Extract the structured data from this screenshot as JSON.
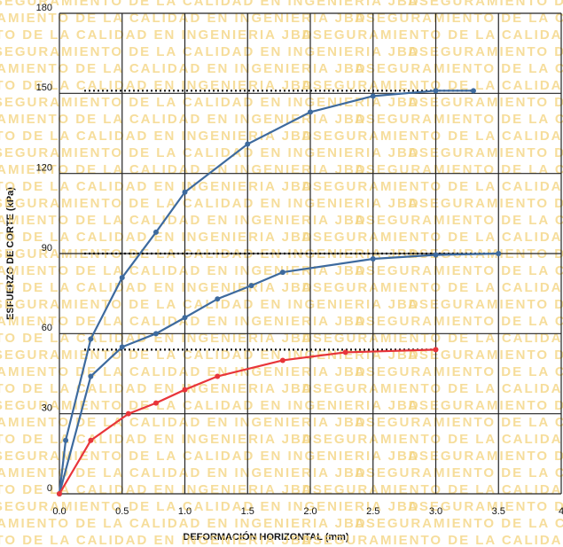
{
  "chart_data": {
    "type": "line",
    "watermark": "ASEGURAMIENTO DE LA CALIDAD EN INGENIERIA  JBD",
    "xlabel": "DEFORMACIÓN HORIZONTAL (mm)",
    "ylabel": "ESFUERZO DE CORTE (kPa)",
    "xlim": [
      0,
      4
    ],
    "ylim": [
      0,
      180
    ],
    "xticks": [
      {
        "value": 0,
        "label": "0.0"
      },
      0.5,
      {
        "value": 1,
        "label": "1.0"
      },
      1.5,
      {
        "value": 2,
        "label": "2.0"
      },
      2.5,
      {
        "value": 3,
        "label": "3.0"
      },
      3.5,
      {
        "value": 4,
        "label": "4"
      }
    ],
    "yticks": [
      0,
      30,
      60,
      90,
      120,
      150,
      180
    ],
    "grid": true,
    "series": [
      {
        "color": "#3d6a9e",
        "x": [
          0,
          0.05,
          0.25,
          0.5,
          0.77,
          1.0,
          1.5,
          2.0,
          2.5,
          3.0,
          3.3
        ],
        "values": [
          0,
          20,
          58,
          81,
          98,
          113,
          131,
          143,
          149,
          151,
          151
        ]
      },
      {
        "color": "#3d6a9e",
        "x": [
          0,
          0.25,
          0.5,
          0.77,
          1.0,
          1.26,
          1.53,
          1.78,
          2.5,
          3.0,
          3.5
        ],
        "values": [
          0,
          44,
          55,
          60,
          66,
          73,
          78,
          83,
          88,
          89.5,
          90
        ]
      },
      {
        "color": "#e8353a",
        "x": [
          0,
          0.25,
          0.55,
          0.77,
          1.0,
          1.26,
          1.78,
          2.28,
          3.0
        ],
        "values": [
          0,
          20,
          30,
          34,
          39,
          44,
          50,
          53,
          54
        ]
      }
    ],
    "reference_lines": [
      151,
      90,
      54
    ]
  }
}
